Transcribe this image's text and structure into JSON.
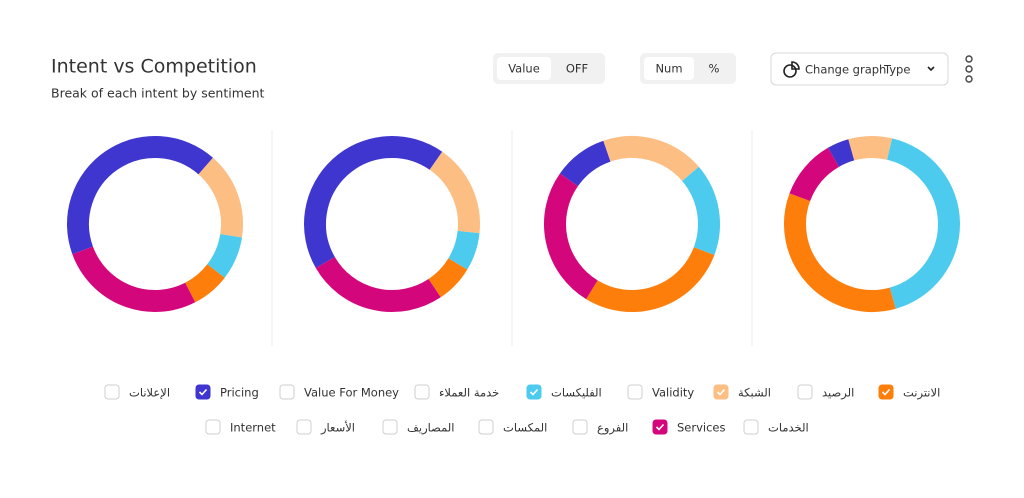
{
  "header": {
    "title": "Intent vs Competition",
    "subtitle": "Break of each intent by sentiment"
  },
  "toggles": [
    {
      "options": [
        "Value",
        "OFF"
      ],
      "selected": 0
    },
    {
      "options": [
        "Num",
        "%"
      ],
      "selected": 0
    }
  ],
  "dropdown": {
    "label": "Change graph",
    "value": "Type"
  },
  "chart_data": {
    "type": "donut",
    "categories": [
      null,
      null,
      null,
      null
    ],
    "series": [
      {
        "name": "الإعلانات",
        "checked": false
      },
      {
        "name": "Pricing",
        "checked": true,
        "color": "#3f35cf",
        "values": [
          42,
          43,
          10,
          4
        ]
      },
      {
        "name": "Value For Money",
        "checked": false
      },
      {
        "name": "خدمة العملاء",
        "checked": false
      },
      {
        "name": "الفليكسات",
        "checked": true,
        "color": "#4ccbef",
        "values": [
          8,
          7,
          17,
          42
        ]
      },
      {
        "name": "Validity",
        "checked": false
      },
      {
        "name": "الشبكة",
        "checked": true,
        "color": "#fdbe83",
        "values": [
          16,
          17,
          19,
          8
        ]
      },
      {
        "name": "الرصيد",
        "checked": false
      },
      {
        "name": "الانترنت",
        "checked": true,
        "color": "#fd7e0a",
        "values": [
          7,
          7,
          28,
          35
        ]
      },
      {
        "name": "Internet",
        "checked": false
      },
      {
        "name": "الأسعار",
        "checked": false
      },
      {
        "name": "المصاريف",
        "checked": false
      },
      {
        "name": "المكسات",
        "checked": false
      },
      {
        "name": "الفروع",
        "checked": false
      },
      {
        "name": "Services",
        "checked": true,
        "color": "#d4067b",
        "values": [
          27,
          26,
          26,
          11
        ]
      },
      {
        "name": "الخدمات",
        "checked": false
      }
    ]
  }
}
